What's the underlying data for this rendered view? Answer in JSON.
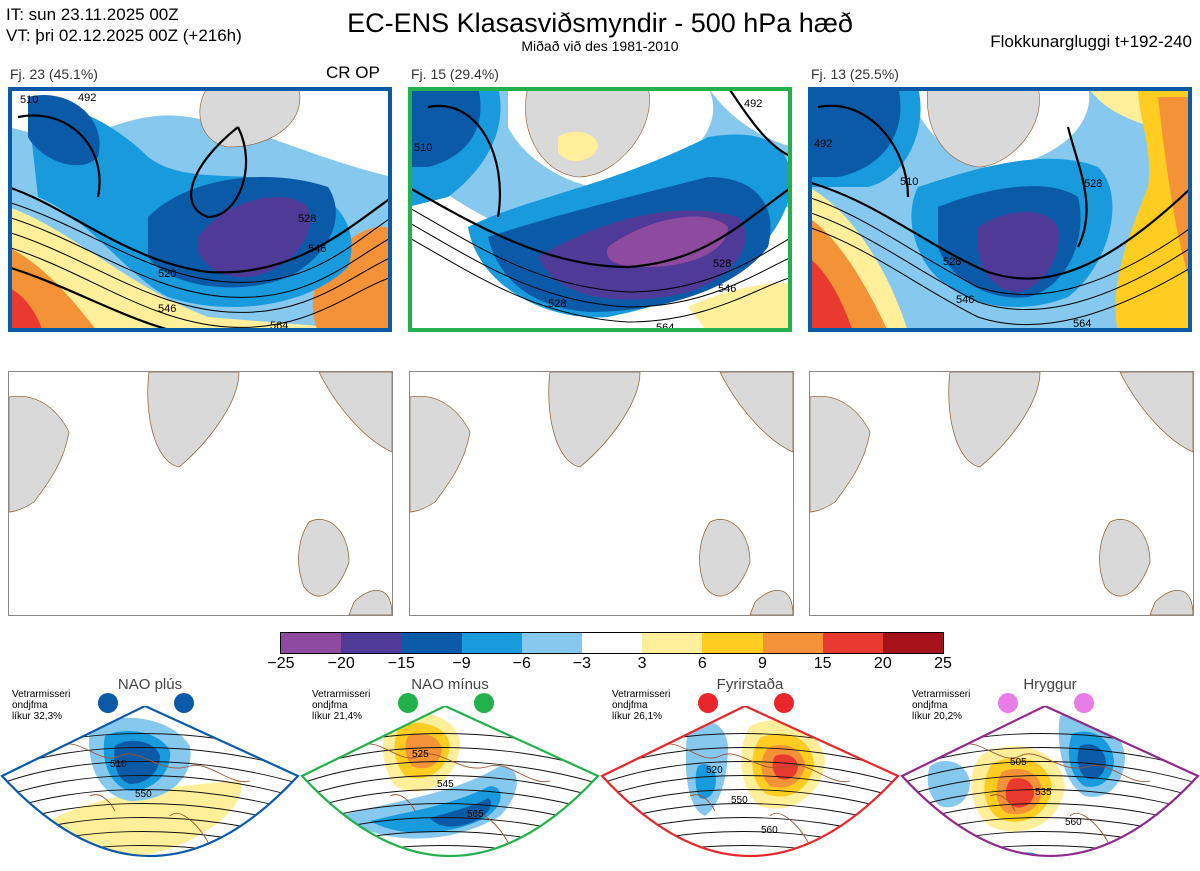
{
  "header": {
    "init_time": "IT: sun 23.11.2025 00Z",
    "valid_time": "VT: þri 02.12.2025 00Z  (+216h)",
    "title": "EC-ENS Klasasviðsmyndir - 500 hPa hæð",
    "subtitle": "Miðað við des 1981-2010",
    "window": "Flokkunargluggi t+192-240"
  },
  "clusters": [
    {
      "label": "Fj. 23 (45.1%)",
      "frame_color": "#0b5aa8",
      "tag": "CR OP",
      "contours": [
        "520",
        "546",
        "528",
        "546",
        "564",
        "492",
        "510"
      ]
    },
    {
      "label": "Fj. 15 (29.4%)",
      "frame_color": "#22b14c",
      "tag": "",
      "contours": [
        "528",
        "546",
        "528",
        "564",
        "510",
        "492"
      ]
    },
    {
      "label": "Fj. 13 (25.5%)",
      "frame_color": "#0b5aa8",
      "tag": "",
      "contours": [
        "510",
        "528",
        "546",
        "528",
        "492",
        "564"
      ]
    }
  ],
  "colorbar": {
    "ticks": [
      "−25",
      "−20",
      "−15",
      "−9",
      "−6",
      "−3",
      "3",
      "6",
      "9",
      "15",
      "20",
      "25"
    ],
    "colors": [
      "#8e4a9e",
      "#4f3a98",
      "#0a5aa8",
      "#189adc",
      "#86c8ee",
      "#ffffff",
      "#ffef9a",
      "#ffcc22",
      "#f39237",
      "#e83a2e",
      "#a51219"
    ]
  },
  "regimes": [
    {
      "name": "NAO plús",
      "note_line1": "Vetrarmisseri",
      "note_line2": "ondjfma",
      "note_line3": "líkur 32,3%",
      "dot_color": "#0b5aa8",
      "frame_color": "#0b5aa8",
      "contours": [
        "510",
        "550"
      ]
    },
    {
      "name": "NAO mínus",
      "note_line1": "Vetrarmisseri",
      "note_line2": "ondjfma",
      "note_line3": "líkur 21,4%",
      "dot_color": "#22b14c",
      "frame_color": "#22b14c",
      "contours": [
        "525",
        "545",
        "565"
      ]
    },
    {
      "name": "Fyrirstaða",
      "note_line1": "Vetrarmisseri",
      "note_line2": "ondjfma",
      "note_line3": "líkur 26,1%",
      "dot_color": "#e8262b",
      "frame_color": "#e8262b",
      "contours": [
        "520",
        "550",
        "560"
      ]
    },
    {
      "name": "Hryggur",
      "note_line1": "Vetrarmisseri",
      "note_line2": "ondjfma",
      "note_line3": "líkur 20,2%",
      "dot_color": "#e87de8",
      "frame_color": "#8e2a8e",
      "contours": [
        "505",
        "535",
        "560"
      ]
    }
  ]
}
